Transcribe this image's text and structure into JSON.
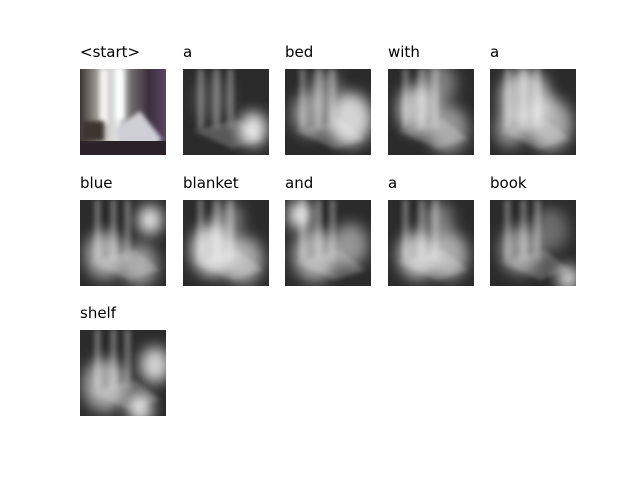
{
  "words": [
    "<start>",
    "a",
    "bed",
    "with",
    "a",
    "blue",
    "blanket",
    "and",
    "a",
    "book",
    "shelf"
  ]
}
